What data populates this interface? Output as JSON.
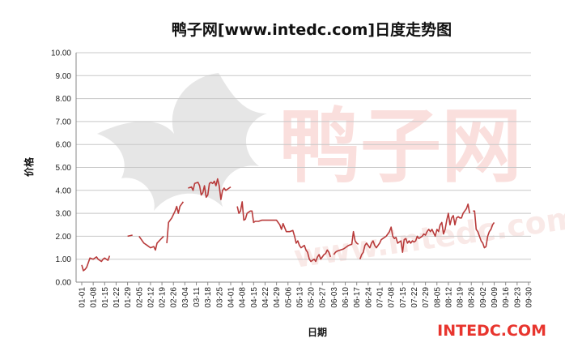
{
  "chart_data": {
    "type": "line",
    "title": "鸭子网[www.intedc.com]日度走势图",
    "xlabel": "日期",
    "ylabel": "价格",
    "ylim": [
      0,
      10
    ],
    "yticks": [
      "0.00",
      "1.00",
      "2.00",
      "3.00",
      "4.00",
      "5.00",
      "6.00",
      "7.00",
      "8.00",
      "9.00",
      "10.00"
    ],
    "xticks": [
      "01-01",
      "01-08",
      "01-15",
      "01-22",
      "01-29",
      "02-05",
      "02-12",
      "02-19",
      "02-26",
      "03-04",
      "03-11",
      "03-18",
      "03-25",
      "04-01",
      "04-08",
      "04-15",
      "04-22",
      "04-29",
      "05-06",
      "05-13",
      "05-20",
      "05-27",
      "06-03",
      "06-10",
      "06-17",
      "06-24",
      "07-01",
      "07-08",
      "07-15",
      "07-22",
      "07-29",
      "08-05",
      "08-12",
      "08-19",
      "08-26",
      "09-02",
      "09-09",
      "09-16",
      "09-23",
      "09-30"
    ],
    "grid": true,
    "legend": "none",
    "series_color": "#b83a3a",
    "segments": [
      [
        [
          0,
          0.75
        ],
        [
          1,
          0.5
        ],
        [
          2,
          0.55
        ],
        [
          3,
          0.65
        ],
        [
          5,
          1.05
        ],
        [
          7,
          1.0
        ],
        [
          9,
          1.1
        ],
        [
          10,
          1.0
        ],
        [
          11,
          0.95
        ],
        [
          12,
          0.9
        ],
        [
          13,
          1.0
        ],
        [
          14,
          1.05
        ],
        [
          15,
          1.0
        ],
        [
          16,
          0.95
        ],
        [
          17,
          1.15
        ]
      ],
      [
        [
          28,
          2.0
        ],
        [
          31,
          2.05
        ]
      ],
      [
        [
          35,
          2.0
        ],
        [
          38,
          1.7
        ],
        [
          40,
          1.6
        ],
        [
          42,
          1.5
        ],
        [
          44,
          1.55
        ],
        [
          45,
          1.4
        ],
        [
          46,
          1.7
        ],
        [
          48,
          1.85
        ],
        [
          50,
          2.0
        ]
      ],
      [
        [
          52,
          1.7
        ],
        [
          53,
          2.6
        ],
        [
          55,
          2.8
        ],
        [
          57,
          3.1
        ],
        [
          58,
          3.3
        ],
        [
          59,
          3.0
        ],
        [
          60,
          3.3
        ],
        [
          61,
          3.4
        ],
        [
          62,
          3.5
        ]
      ],
      [
        [
          65,
          4.1
        ],
        [
          67,
          4.15
        ],
        [
          68,
          4.0
        ],
        [
          69,
          4.3
        ],
        [
          71,
          4.35
        ],
        [
          72,
          4.2
        ],
        [
          73,
          3.8
        ],
        [
          74,
          3.9
        ],
        [
          75,
          4.2
        ],
        [
          76,
          3.7
        ],
        [
          77,
          3.8
        ],
        [
          78,
          4.3
        ],
        [
          79,
          4.35
        ],
        [
          80,
          4.3
        ],
        [
          81,
          4.4
        ],
        [
          82,
          4.2
        ],
        [
          83,
          4.5
        ],
        [
          84,
          4.2
        ],
        [
          85,
          3.6
        ],
        [
          86,
          4.0
        ],
        [
          87,
          4.1
        ],
        [
          88,
          4.0
        ],
        [
          89,
          4.05
        ],
        [
          90,
          4.1
        ],
        [
          91,
          4.15
        ]
      ],
      [
        [
          95,
          3.3
        ],
        [
          96,
          3.0
        ],
        [
          97,
          3.1
        ],
        [
          98,
          3.5
        ],
        [
          99,
          2.7
        ],
        [
          100,
          2.75
        ],
        [
          101,
          3.0
        ],
        [
          102,
          3.05
        ],
        [
          103,
          3.1
        ],
        [
          104,
          3.1
        ],
        [
          105,
          2.6
        ],
        [
          106,
          2.65
        ],
        [
          108,
          2.65
        ],
        [
          110,
          2.7
        ],
        [
          113,
          2.7
        ],
        [
          116,
          2.7
        ],
        [
          119,
          2.7
        ],
        [
          121,
          2.5
        ],
        [
          122,
          2.3
        ],
        [
          123,
          2.55
        ],
        [
          125,
          2.2
        ],
        [
          127,
          2.2
        ],
        [
          129,
          2.25
        ],
        [
          130,
          2.0
        ],
        [
          131,
          1.7
        ],
        [
          132,
          1.8
        ],
        [
          133,
          1.6
        ],
        [
          134,
          1.5
        ],
        [
          136,
          1.6
        ],
        [
          137,
          1.4
        ],
        [
          138,
          1.3
        ],
        [
          139,
          1.0
        ],
        [
          140,
          0.9
        ],
        [
          141,
          0.95
        ],
        [
          142,
          1.0
        ],
        [
          143,
          0.9
        ],
        [
          144,
          1.1
        ],
        [
          145,
          1.2
        ],
        [
          146,
          1.0
        ],
        [
          147,
          1.1
        ],
        [
          148,
          1.2
        ],
        [
          149,
          1.25
        ],
        [
          150,
          1.4
        ],
        [
          151,
          1.3
        ],
        [
          152,
          1.1
        ]
      ],
      [
        [
          154,
          1.2
        ],
        [
          155,
          1.3
        ],
        [
          156,
          1.35
        ],
        [
          158,
          1.4
        ],
        [
          160,
          1.45
        ],
        [
          161,
          1.5
        ],
        [
          162,
          1.55
        ],
        [
          163,
          1.6
        ],
        [
          165,
          1.65
        ],
        [
          166,
          2.2
        ],
        [
          167,
          1.8
        ],
        [
          168,
          1.7
        ],
        [
          169,
          1.65
        ]
      ],
      [
        [
          170,
          1.0
        ],
        [
          171,
          1.2
        ],
        [
          172,
          1.3
        ],
        [
          173,
          1.6
        ],
        [
          174,
          1.7
        ],
        [
          176,
          1.5
        ],
        [
          177,
          1.7
        ],
        [
          178,
          1.8
        ],
        [
          179,
          1.6
        ],
        [
          180,
          1.5
        ],
        [
          181,
          1.6
        ],
        [
          182,
          1.7
        ],
        [
          183,
          1.85
        ],
        [
          184,
          1.9
        ],
        [
          186,
          2.0
        ],
        [
          187,
          2.1
        ],
        [
          188,
          2.2
        ],
        [
          189,
          2.4
        ],
        [
          190,
          2.0
        ],
        [
          191,
          1.9
        ],
        [
          192,
          1.95
        ],
        [
          193,
          1.7
        ],
        [
          194,
          1.75
        ],
        [
          195,
          1.8
        ],
        [
          196,
          1.3
        ],
        [
          197,
          1.85
        ],
        [
          198,
          1.9
        ],
        [
          199,
          1.7
        ],
        [
          200,
          1.8
        ],
        [
          201,
          1.7
        ],
        [
          202,
          1.8
        ],
        [
          203,
          1.75
        ],
        [
          204,
          1.8
        ],
        [
          205,
          2.0
        ],
        [
          206,
          1.9
        ],
        [
          207,
          1.95
        ],
        [
          208,
          2.0
        ],
        [
          209,
          2.1
        ],
        [
          210,
          2.05
        ],
        [
          211,
          2.2
        ],
        [
          212,
          2.3
        ],
        [
          213,
          2.2
        ],
        [
          214,
          2.3
        ],
        [
          215,
          2.15
        ],
        [
          216,
          2.0
        ],
        [
          217,
          2.3
        ],
        [
          218,
          2.2
        ],
        [
          219,
          2.5
        ],
        [
          220,
          2.6
        ],
        [
          221,
          2.1
        ],
        [
          222,
          2.3
        ],
        [
          223,
          2.7
        ],
        [
          224,
          3.0
        ],
        [
          225,
          2.5
        ],
        [
          226,
          2.8
        ],
        [
          227,
          2.9
        ],
        [
          228,
          2.5
        ],
        [
          229,
          2.8
        ],
        [
          230,
          2.85
        ],
        [
          231,
          2.8
        ],
        [
          232,
          2.8
        ],
        [
          233,
          3.0
        ],
        [
          234,
          3.1
        ],
        [
          235,
          3.2
        ],
        [
          236,
          3.4
        ],
        [
          237,
          3.0
        ]
      ],
      [
        [
          239,
          3.1
        ],
        [
          240,
          3.1
        ],
        [
          241,
          2.3
        ],
        [
          242,
          2.2
        ],
        [
          243,
          2.0
        ],
        [
          244,
          1.8
        ],
        [
          245,
          1.7
        ],
        [
          246,
          1.5
        ],
        [
          247,
          1.55
        ],
        [
          248,
          2.0
        ],
        [
          249,
          2.2
        ],
        [
          250,
          2.3
        ],
        [
          251,
          2.5
        ],
        [
          252,
          2.6
        ]
      ]
    ]
  },
  "watermark": {
    "brand_chars": "鸭子网",
    "faint_url": "www.intedc.com"
  },
  "brand_logo": "INTEDC.COM"
}
